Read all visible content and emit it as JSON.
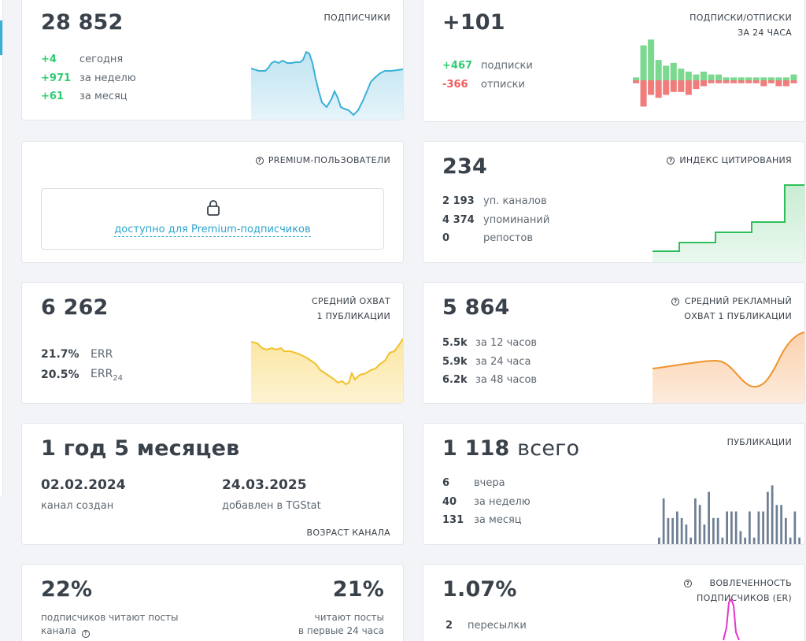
{
  "subscribers": {
    "value": "28 852",
    "label": "ПОДПИСЧИКИ",
    "stats": [
      {
        "value": "+4",
        "text": "сегодня"
      },
      {
        "value": "+971",
        "text": "за неделю"
      },
      {
        "value": "+61",
        "text": "за месяц"
      }
    ],
    "color": "#3ab0d6"
  },
  "subs_unsubs": {
    "value": "+101",
    "label_line1": "ПОДПИСКИ/ОТПИСКИ",
    "label_line2": "ЗА 24 ЧАСА",
    "stats": [
      {
        "value": "+467",
        "text": "подписки"
      },
      {
        "value": "-366",
        "text": "отписки"
      }
    ],
    "chart_data": {
      "type": "bar",
      "series": [
        {
          "name": "подписки",
          "values": [
            1,
            12,
            14,
            7,
            5,
            6,
            4,
            3,
            2,
            3,
            2,
            2,
            1,
            1,
            1,
            1,
            1,
            1,
            1,
            1,
            1,
            2
          ]
        },
        {
          "name": "отписки",
          "values": [
            -1,
            -9,
            -5,
            -6,
            -5,
            -4,
            -4,
            -5,
            -3,
            -2,
            -1,
            -1,
            -1,
            -1,
            -1,
            -1,
            -1,
            -2,
            -1,
            -2,
            -2,
            -1
          ]
        }
      ],
      "colors": [
        "#7bd88f",
        "#f07c7c"
      ]
    }
  },
  "premium": {
    "label": "PREMIUM-ПОЛЬЗОВАТЕЛИ",
    "lock_icon": "lock-icon",
    "link": "доступно для Premium-подписчиков"
  },
  "citation": {
    "value": "234",
    "label": "ИНДЕКС ЦИТИРОВАНИЯ",
    "stats": [
      {
        "value": "2 193",
        "text": "уп. каналов"
      },
      {
        "value": "4 374",
        "text": "упоминаний"
      },
      {
        "value": "0",
        "text": "репостов"
      }
    ],
    "color": "#2fbf5a"
  },
  "avg_reach": {
    "value": "6 262",
    "label_line1": "СРЕДНИЙ ОХВАТ",
    "label_line2": "1 ПУБЛИКАЦИИ",
    "err": {
      "value": "21.7%",
      "text": "ERR"
    },
    "err24": {
      "value": "20.5%",
      "text": "ERR",
      "sub": "24"
    },
    "color": "#f2c12e"
  },
  "ad_reach": {
    "value": "5 864",
    "label_line1": "СРЕДНИЙ РЕКЛАМНЫЙ",
    "label_line2": "ОХВАТ 1 ПУБЛИКАЦИИ",
    "stats": [
      {
        "value": "5.5k",
        "text": "за 12 часов"
      },
      {
        "value": "5.9k",
        "text": "за 24 часа"
      },
      {
        "value": "6.2k",
        "text": "за 48 часов"
      }
    ],
    "color": "#f0932b"
  },
  "age": {
    "value": "1 год 5 месяцев",
    "created_date": "02.02.2024",
    "created_text": "канал создан",
    "added_date": "24.03.2025",
    "added_text": "добавлен в TGStat",
    "label": "ВОЗРАСТ КАНАЛА"
  },
  "publications": {
    "value": "1 118",
    "value_suffix": "всего",
    "label": "ПУБЛИКАЦИИ",
    "stats": [
      {
        "value": "6",
        "text": "вчера"
      },
      {
        "value": "40",
        "text": "за неделю"
      },
      {
        "value": "131",
        "text": "за месяц"
      }
    ],
    "chart_data": {
      "type": "bar",
      "values": [
        1,
        7,
        4,
        4,
        5,
        4,
        3,
        1,
        7,
        6,
        3,
        8,
        4,
        4,
        1,
        5,
        5,
        5,
        2,
        1,
        5,
        1,
        5,
        5,
        8,
        9,
        6,
        6,
        4,
        1,
        5,
        1
      ],
      "color": "#6e7f94"
    }
  },
  "read_posts": {
    "value_left": "22%",
    "text_left_line1": "подписчиков читают посты",
    "text_left_line2": "канала",
    "value_right": "21%",
    "text_right_line1": "читают посты",
    "text_right_line2": "в первые 24 часа"
  },
  "engagement": {
    "value": "1.07%",
    "label_line1": "ВОВЛЕЧЕННОСТЬ",
    "label_line2": "ПОДПИСЧИКОВ (ER)",
    "stats": [
      {
        "value": "2",
        "text": "пересылки"
      }
    ],
    "color": "#e636c8"
  }
}
